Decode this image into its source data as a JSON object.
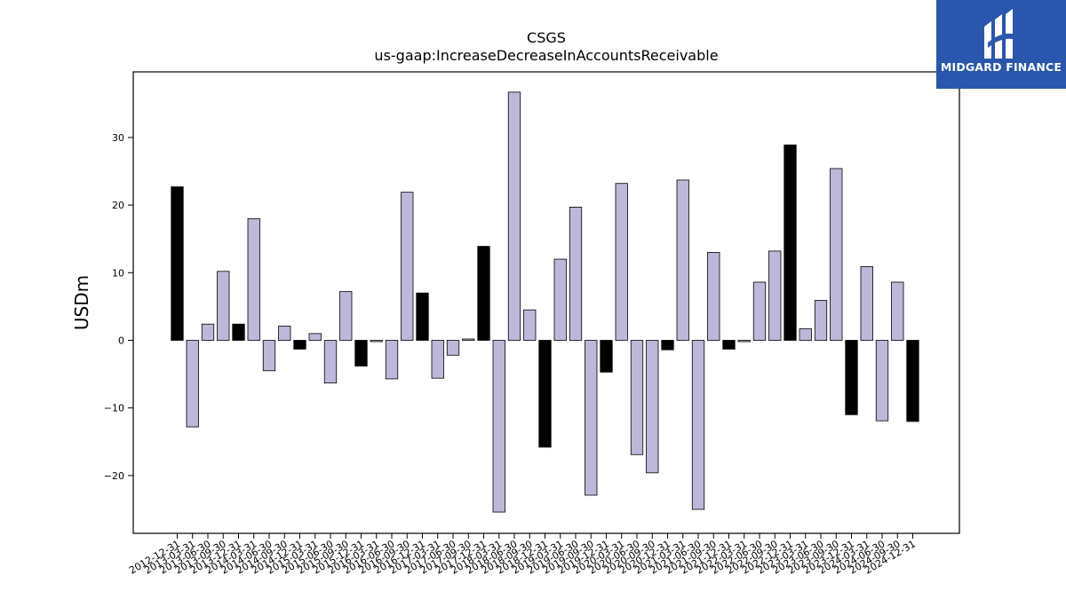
{
  "logo": {
    "brand_name": "MIDGARD FINANCE",
    "icon": "mf-logo-icon",
    "background": "#2a56ae"
  },
  "chart_data": {
    "type": "bar",
    "title": "CSGS",
    "subtitle": "us-gaap:IncreaseDecreaseInAccountsReceivable",
    "xlabel": "",
    "ylabel": "USDm",
    "ylim": [
      -29,
      39.5
    ],
    "yticks": [
      -20,
      -10,
      0,
      10,
      20,
      30
    ],
    "grid": false,
    "colors": {
      "quarterly": "#bcb8d9",
      "annual": "#000000",
      "edge": "#000000"
    },
    "categories": [
      "2012-12-31",
      "2013-03-31",
      "2013-06-30",
      "2013-09-30",
      "2013-12-31",
      "2014-03-31",
      "2014-06-30",
      "2014-09-30",
      "2014-12-31",
      "2015-03-31",
      "2015-06-30",
      "2015-09-30",
      "2015-12-31",
      "2016-03-31",
      "2016-06-30",
      "2016-09-30",
      "2016-12-31",
      "2017-03-31",
      "2017-06-30",
      "2017-09-30",
      "2017-12-31",
      "2018-03-31",
      "2018-06-30",
      "2018-09-30",
      "2018-12-31",
      "2019-03-31",
      "2019-06-30",
      "2019-09-30",
      "2019-12-31",
      "2020-03-31",
      "2020-06-30",
      "2020-09-30",
      "2020-12-31",
      "2021-03-31",
      "2021-06-30",
      "2021-09-30",
      "2021-12-31",
      "2022-03-31",
      "2022-06-30",
      "2022-09-30",
      "2022-12-31",
      "2023-03-31",
      "2023-06-30",
      "2023-09-30",
      "2023-12-31",
      "2024-03-31",
      "2024-06-30",
      "2024-09-30",
      "2024-12-31"
    ],
    "values": [
      22.7,
      -12.8,
      2.4,
      10.2,
      2.4,
      18.0,
      -4.5,
      2.1,
      -1.3,
      1.0,
      -6.3,
      7.2,
      -3.8,
      -0.2,
      -5.7,
      21.9,
      7.0,
      -5.6,
      -2.2,
      0.2,
      13.9,
      -25.4,
      36.7,
      4.5,
      -15.8,
      12.0,
      19.7,
      -22.9,
      -4.7,
      23.2,
      -16.9,
      -19.6,
      -1.4,
      23.7,
      -25.0,
      13.0,
      -1.3,
      -0.2,
      8.6,
      13.2,
      28.9,
      1.7,
      5.9,
      25.4,
      -11.0,
      10.9,
      -11.9,
      8.6,
      -12.0
    ],
    "is_annual": [
      true,
      false,
      false,
      false,
      true,
      false,
      false,
      false,
      true,
      false,
      false,
      false,
      true,
      false,
      false,
      false,
      true,
      false,
      false,
      false,
      true,
      false,
      false,
      false,
      true,
      false,
      false,
      false,
      true,
      false,
      false,
      false,
      true,
      false,
      false,
      false,
      true,
      false,
      false,
      false,
      true,
      false,
      false,
      false,
      true,
      false,
      false,
      false,
      true
    ]
  }
}
